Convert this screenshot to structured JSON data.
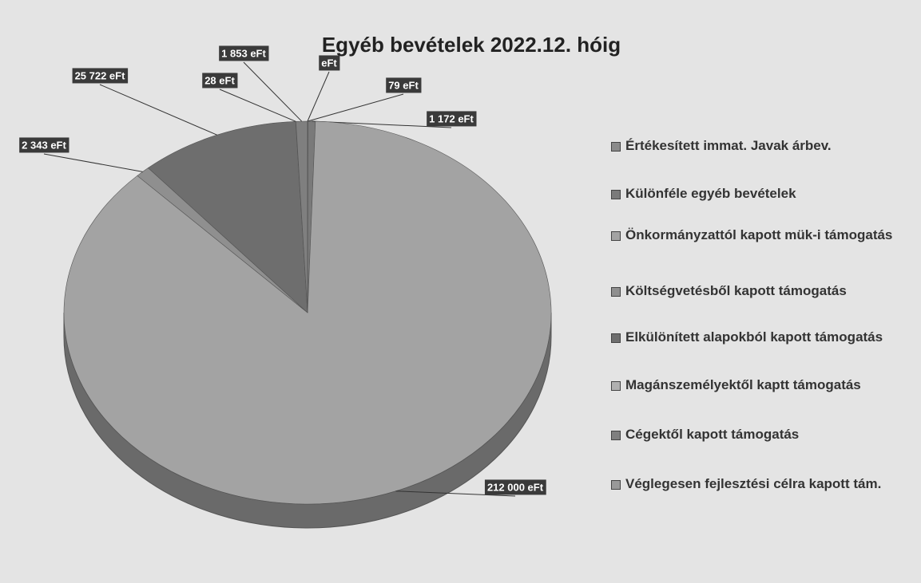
{
  "chart_data": {
    "type": "pie",
    "title": "Egyéb bevételek 2022.12. hóig",
    "categories": [
      "Értékesített immat. Javak árbev.",
      "Különféle egyéb bevételek",
      "Önkormányzattól kapott mük-i támogatás",
      "Költségvetésből kapott támogatás",
      "Elkülönített alapokból kapott támogatás",
      "Magánszemélyektől kaptt támogatás",
      "Cégektől kapott támogatás",
      "Véglegesen fejlesztési célra kapott tám."
    ],
    "values": [
      79,
      1172,
      212000,
      2343,
      25722,
      28,
      1853,
      0
    ],
    "value_labels": [
      "79 eFt",
      "1 172 eFt",
      "212 000 eFt",
      "2 343 eFt",
      "25 722 eFt",
      "28 eFt",
      "1 853 eFt",
      "eFt"
    ],
    "colors": [
      "#8a8a8a",
      "#7a7a7a",
      "#a3a3a3",
      "#8f8f8f",
      "#6e6e6e",
      "#b0b0b0",
      "#7f7f7f",
      "#999999"
    ]
  }
}
